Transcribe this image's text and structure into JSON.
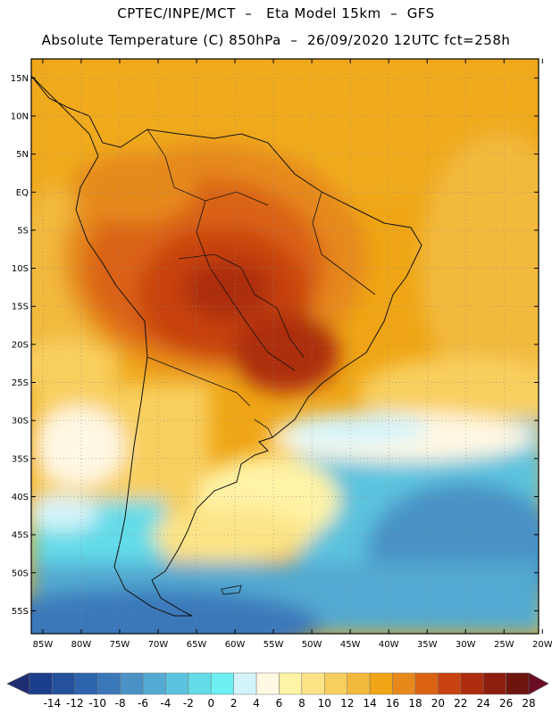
{
  "header": {
    "line1": "CPTEC/INPE/MCT  –   Eta Model 15km  –  GFS",
    "line2": "Absolute Temperature (C) 850hPa  –  26/09/2020 12UTC fct=258h"
  },
  "map_axes": {
    "lat_labels": [
      "15N",
      "10N",
      "5N",
      "EQ",
      "5S",
      "10S",
      "15S",
      "20S",
      "25S",
      "30S",
      "35S",
      "40S",
      "45S",
      "50S",
      "55S"
    ],
    "lon_labels": [
      "85W",
      "80W",
      "75W",
      "70W",
      "65W",
      "60W",
      "55W",
      "50W",
      "45W",
      "40W",
      "35W",
      "30W",
      "25W",
      "20W"
    ],
    "lat_range": [
      17.5,
      -58
    ],
    "lon_range": [
      -86.5,
      -20.5
    ],
    "gridlines": "dotted"
  },
  "colorbar": {
    "labels": [
      "-14",
      "-12",
      "-10",
      "-8",
      "-6",
      "-4",
      "-2",
      "0",
      "2",
      "4",
      "6",
      "8",
      "10",
      "12",
      "14",
      "16",
      "18",
      "20",
      "22",
      "24",
      "26",
      "28"
    ],
    "colors": [
      "#1b3f8b",
      "#24509c",
      "#2e63ad",
      "#3b78ba",
      "#4a92c6",
      "#53aad2",
      "#5cc3de",
      "#63dbe8",
      "#6cf0f2",
      "#d4f4fb",
      "#fff8e3",
      "#fff3a6",
      "#fce486",
      "#f8cf5e",
      "#f2b93c",
      "#efa515",
      "#e6891a",
      "#da6212",
      "#c8430f",
      "#ad2d0e",
      "#8e1e0d",
      "#6d150d"
    ],
    "arrow_left_color": "#1f2d73",
    "arrow_right_color": "#6a0d23"
  }
}
